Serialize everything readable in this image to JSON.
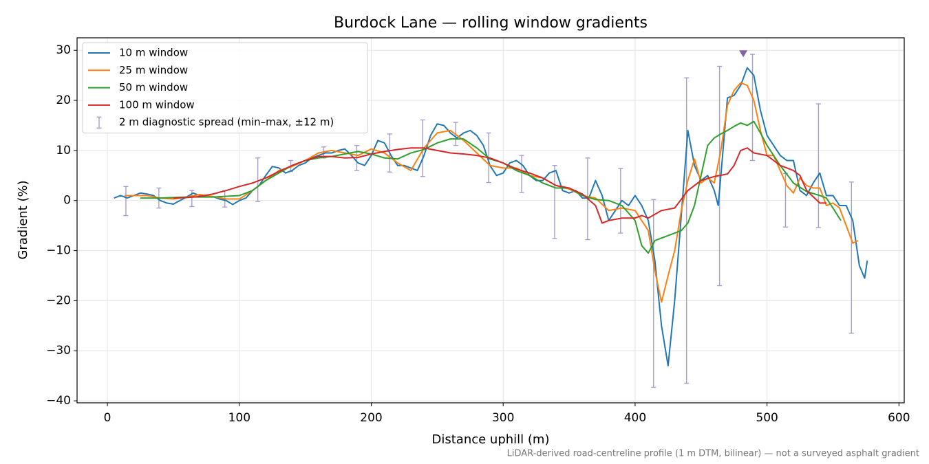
{
  "chart_data": {
    "type": "line",
    "title": "Burdock Lane — rolling window gradients",
    "x_label": "Distance uphill (m)",
    "y_label": "Gradient (%)",
    "footnote": "LiDAR-derived road-centreline profile (1 m DTM, bilinear) — not a surveyed asphalt gradient",
    "xlim": [
      -23,
      604
    ],
    "ylim": [
      -40.4,
      32.5
    ],
    "xticks": [
      0,
      100,
      200,
      300,
      400,
      500,
      600
    ],
    "yticks": [
      {
        "value": -40,
        "label": "−40"
      },
      {
        "value": -30,
        "label": "−30"
      },
      {
        "value": -20,
        "label": "−20"
      },
      {
        "value": -10,
        "label": "−10"
      },
      0,
      10,
      20,
      30
    ],
    "grid": true,
    "legend": "upper left",
    "series": [
      {
        "name": "10 m window",
        "color": "#1f77b4",
        "x": [
          5,
          10,
          15,
          20,
          25,
          30,
          35,
          40,
          45,
          50,
          55,
          60,
          65,
          70,
          75,
          80,
          85,
          90,
          95,
          100,
          105,
          110,
          115,
          120,
          125,
          130,
          135,
          140,
          145,
          150,
          155,
          160,
          165,
          170,
          175,
          180,
          185,
          190,
          195,
          200,
          205,
          210,
          215,
          220,
          225,
          230,
          235,
          240,
          245,
          250,
          255,
          260,
          265,
          270,
          275,
          280,
          285,
          290,
          295,
          300,
          305,
          310,
          315,
          320,
          325,
          330,
          335,
          340,
          345,
          350,
          355,
          360,
          365,
          370,
          375,
          380,
          385,
          390,
          395,
          400,
          405,
          410,
          415,
          420,
          425,
          430,
          435,
          440,
          445,
          450,
          455,
          460,
          463,
          466,
          470,
          475,
          480,
          485,
          490,
          495,
          500,
          505,
          510,
          515,
          520,
          525,
          530,
          535,
          540,
          545,
          550,
          555,
          560,
          565,
          570,
          574,
          576
        ],
        "values": [
          0.5,
          1,
          0.5,
          1,
          1.5,
          1.3,
          1,
          0,
          -0.5,
          -0.7,
          0,
          0.7,
          1.5,
          1,
          0.7,
          0.8,
          0.3,
          0,
          -0.8,
          0,
          0.5,
          2,
          3,
          5,
          6.8,
          6.5,
          5.5,
          6,
          7,
          7.5,
          8.5,
          9,
          9.5,
          9.5,
          10,
          10.3,
          9,
          7.5,
          7,
          9,
          12,
          11.5,
          9,
          7,
          7,
          6.5,
          6,
          9,
          13,
          15.3,
          15,
          13.5,
          12.5,
          13.5,
          14,
          13,
          11,
          7,
          5,
          5.5,
          7.5,
          8,
          7,
          5,
          4,
          4,
          5.5,
          6,
          2,
          1.5,
          2,
          0.5,
          0.5,
          4,
          1,
          -4,
          -2,
          0,
          -1,
          1,
          -1,
          -4,
          -12,
          -25,
          -33,
          -20,
          -3,
          14,
          7,
          4,
          5,
          2,
          -1,
          8,
          20.5,
          21,
          23,
          26.5,
          25,
          18,
          13,
          11,
          9,
          8,
          8,
          2,
          1,
          3.5,
          5.5,
          1,
          1,
          -1,
          -1,
          -4,
          -13,
          -15.5,
          -12
        ]
      },
      {
        "name": "25 m window",
        "color": "#ff7f0e",
        "x": [
          13,
          20,
          30,
          40,
          50,
          60,
          70,
          80,
          90,
          100,
          110,
          120,
          130,
          140,
          150,
          160,
          170,
          180,
          190,
          200,
          210,
          220,
          230,
          240,
          250,
          260,
          270,
          280,
          290,
          300,
          310,
          320,
          330,
          340,
          350,
          360,
          370,
          380,
          390,
          400,
          410,
          415,
          420,
          425,
          430,
          435,
          440,
          445,
          450,
          455,
          460,
          465,
          470,
          475,
          480,
          485,
          490,
          495,
          500,
          505,
          510,
          515,
          520,
          525,
          530,
          535,
          540,
          545,
          550,
          555,
          560,
          565,
          569
        ],
        "values": [
          1,
          1,
          1,
          0.5,
          0.3,
          0.7,
          1.2,
          0.8,
          0.3,
          0.3,
          2,
          4,
          6,
          6.8,
          8,
          9.5,
          10,
          9.5,
          9,
          10.3,
          9.5,
          7.5,
          6,
          10.5,
          13.5,
          14,
          12,
          9.5,
          7,
          6.5,
          6.5,
          5,
          4.5,
          3,
          2.3,
          1,
          0.5,
          -2,
          -1.5,
          -2,
          -6,
          -14,
          -20.3,
          -15,
          -10,
          -2,
          4,
          8.3,
          3.5,
          4.5,
          3.5,
          10,
          19,
          22,
          23.5,
          23,
          20,
          14,
          9,
          9,
          6,
          3,
          1.5,
          4.5,
          3,
          2.5,
          2.5,
          -1,
          -0.5,
          -1.5,
          -5,
          -8.5,
          -8
        ]
      },
      {
        "name": "50 m window",
        "color": "#2ca02c",
        "x": [
          25,
          40,
          60,
          80,
          100,
          110,
          120,
          130,
          140,
          150,
          160,
          170,
          180,
          190,
          200,
          210,
          220,
          230,
          240,
          250,
          260,
          270,
          280,
          290,
          300,
          310,
          320,
          330,
          340,
          350,
          360,
          370,
          380,
          390,
          400,
          405,
          410,
          415,
          420,
          425,
          430,
          435,
          440,
          445,
          450,
          455,
          460,
          465,
          470,
          475,
          480,
          485,
          490,
          495,
          500,
          510,
          520,
          530,
          540,
          545,
          550,
          556
        ],
        "values": [
          0.5,
          0.5,
          0.7,
          0.7,
          1,
          2,
          4,
          5.5,
          7,
          8,
          8.5,
          8.8,
          9.3,
          9.8,
          9.3,
          8.5,
          8.3,
          9.5,
          10.2,
          11.5,
          12.3,
          12.3,
          10.5,
          8.3,
          7.5,
          6,
          5,
          3.5,
          2.5,
          2.5,
          1,
          0.2,
          0,
          -1,
          -4,
          -9,
          -10.5,
          -8,
          -7.5,
          -7,
          -6.5,
          -6,
          -4.5,
          -1,
          5,
          11,
          12.5,
          13.3,
          14,
          14.8,
          15.5,
          15,
          15.8,
          13.5,
          11,
          7,
          3.5,
          1.8,
          1,
          0.5,
          -1.5,
          -4
        ]
      },
      {
        "name": "100 m window",
        "color": "#d62728",
        "x": [
          50,
          60,
          70,
          80,
          90,
          100,
          110,
          120,
          130,
          140,
          150,
          160,
          170,
          180,
          190,
          200,
          210,
          220,
          230,
          240,
          250,
          260,
          270,
          280,
          290,
          300,
          310,
          320,
          330,
          340,
          350,
          360,
          370,
          375,
          380,
          390,
          400,
          405,
          410,
          420,
          430,
          440,
          450,
          460,
          470,
          475,
          480,
          485,
          490,
          500,
          510,
          520,
          525,
          530,
          540,
          545
        ],
        "values": [
          0.5,
          0.6,
          0.8,
          1.3,
          2,
          2.8,
          3.5,
          4.5,
          5.8,
          7,
          8,
          8.8,
          8.8,
          8.5,
          8.6,
          9.3,
          9.8,
          10.2,
          10.5,
          10.5,
          10,
          9.5,
          9.3,
          9,
          8.5,
          7.5,
          6.3,
          5.5,
          4.5,
          3,
          2.5,
          1.3,
          -1,
          -4.5,
          -4,
          -3.5,
          -3.5,
          -3,
          -3.5,
          -2,
          -1.5,
          2,
          4,
          4.8,
          5.3,
          7,
          10,
          10.5,
          9.5,
          9,
          7,
          6,
          5,
          2,
          -0.5,
          -0.5
        ]
      }
    ],
    "error_bars": {
      "name": "2 m diagnostic spread (min–max, ±12 m)",
      "color": "#a89cc8",
      "x": [
        14,
        39,
        64,
        89,
        114,
        139,
        164,
        189,
        214,
        239,
        264,
        289,
        314,
        339,
        364,
        389,
        414,
        439,
        464,
        489,
        514,
        539,
        564
      ],
      "low": [
        -3,
        -1.5,
        -1.2,
        -1.3,
        -0.2,
        5.8,
        8.5,
        6,
        5.7,
        4.8,
        11,
        3.6,
        1.6,
        -7.6,
        -7.8,
        -6.5,
        -37.3,
        -36.5,
        -17,
        8,
        -5.3,
        -5.4,
        -26.5
      ],
      "high": [
        2.8,
        2.5,
        2,
        2,
        8.5,
        8,
        10.7,
        11,
        13.3,
        16.1,
        15.6,
        13.5,
        9,
        7,
        8.5,
        6.4,
        0.2,
        24.5,
        26.8,
        29.2,
        5.4,
        19.3,
        3.7
      ]
    },
    "peak_marker": {
      "x": 482,
      "y": 29.3,
      "color": "#8064a2"
    }
  }
}
